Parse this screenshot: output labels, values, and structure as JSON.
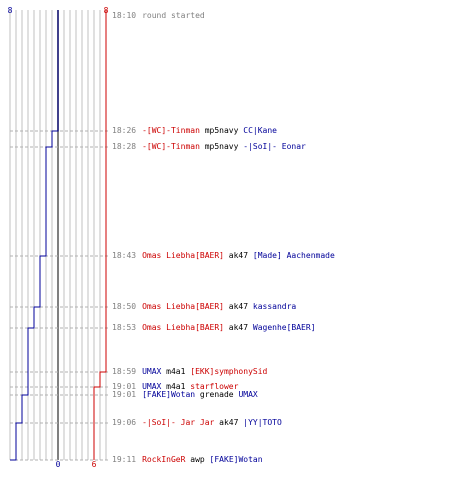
{
  "round": {
    "start_time": "18:10",
    "start_text": "round started",
    "blue_start": "8",
    "red_start": "8",
    "blue_end": "0",
    "red_end": "6"
  },
  "colors": {
    "blue": "#000099",
    "red": "#cc0000",
    "time": "#808080",
    "grid": "#c0c0c0",
    "center": "#808080"
  },
  "events": [
    {
      "time": "18:26",
      "killer": "-[WC]-Tinman",
      "killer_team": "red",
      "weapon": "mp5navy",
      "victim": "CC|Kane",
      "victim_team": "blue",
      "blue_after": 7,
      "red_after": 8
    },
    {
      "time": "18:28",
      "killer": "-[WC]-Tinman",
      "killer_team": "red",
      "weapon": "mp5navy",
      "victim": "-|SoI|- Eonar",
      "victim_team": "blue",
      "blue_after": 6,
      "red_after": 8
    },
    {
      "time": "18:43",
      "killer": "Omas Liebha[BAER]",
      "killer_team": "red",
      "weapon": "ak47",
      "victim": "[Made] Aachenmade",
      "victim_team": "blue",
      "blue_after": 5,
      "red_after": 8
    },
    {
      "time": "18:50",
      "killer": "Omas Liebha[BAER]",
      "killer_team": "red",
      "weapon": "ak47",
      "victim": "kassandra",
      "victim_team": "blue",
      "blue_after": 4,
      "red_after": 8
    },
    {
      "time": "18:53",
      "killer": "Omas Liebha[BAER]",
      "killer_team": "red",
      "weapon": "ak47",
      "victim": "Wagenhe[BAER]",
      "victim_team": "blue",
      "blue_after": 3,
      "red_after": 8
    },
    {
      "time": "18:59",
      "killer": "UMAX",
      "killer_team": "blue",
      "weapon": "m4a1",
      "victim": "[EKK]symphonySid",
      "victim_team": "red",
      "blue_after": 3,
      "red_after": 7
    },
    {
      "time": "19:01",
      "killer": "UMAX",
      "killer_team": "blue",
      "weapon": "m4a1",
      "victim": "starflower",
      "victim_team": "red",
      "blue_after": 3,
      "red_after": 6
    },
    {
      "time": "19:01",
      "killer": "[FAKE]Wotan",
      "killer_team": "blue",
      "weapon": "grenade",
      "victim": "UMAX",
      "victim_team": "blue",
      "blue_after": 2,
      "red_after": 6
    },
    {
      "time": "19:06",
      "killer": "-|SoI|- Jar Jar",
      "killer_team": "red",
      "weapon": "ak47",
      "victim": "|YY|TOTO",
      "victim_team": "blue",
      "blue_after": 1,
      "red_after": 6
    },
    {
      "time": "19:11",
      "killer": "RockInGeR",
      "killer_team": "red",
      "weapon": "awp",
      "victim": "[FAKE]Wotan",
      "victim_team": "blue",
      "blue_after": 0,
      "red_after": 6
    }
  ]
}
